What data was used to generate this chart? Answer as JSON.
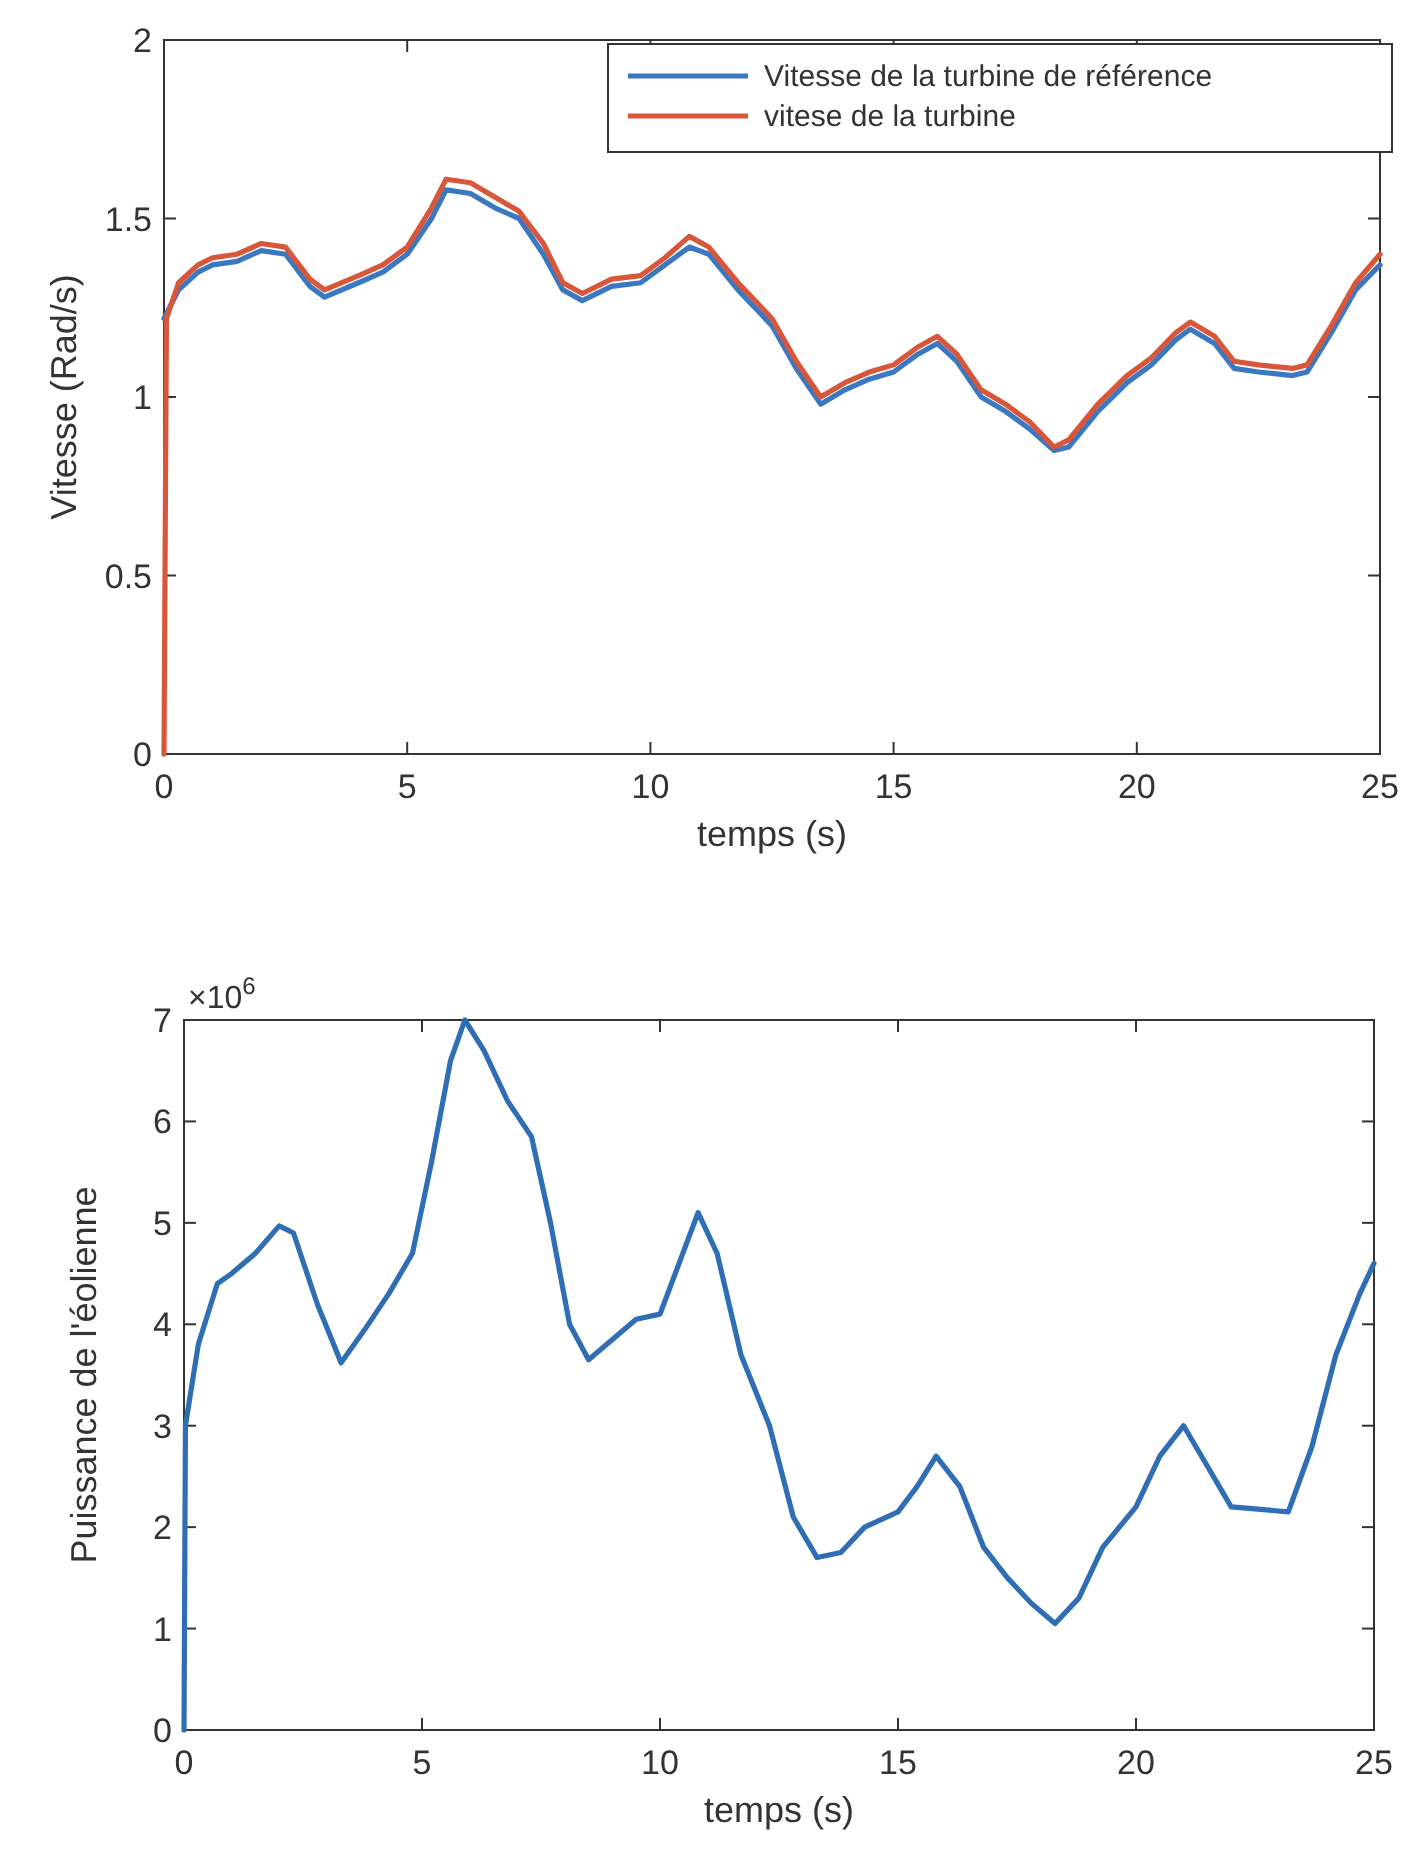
{
  "chart_data": [
    {
      "type": "line",
      "xlabel": "temps (s)",
      "ylabel": "Vitesse (Rad/s)",
      "xlim": [
        0,
        25
      ],
      "ylim": [
        0,
        2
      ],
      "xticks": [
        0,
        5,
        10,
        15,
        20,
        25
      ],
      "yticks": [
        0,
        0.5,
        1,
        1.5,
        2
      ],
      "grid": false,
      "legend": "top right",
      "line_style": "solid",
      "marker": "none",
      "x": [
        0,
        0.3,
        0.7,
        1,
        1.5,
        2,
        2.5,
        3,
        3.3,
        4,
        4.5,
        5,
        5.5,
        5.8,
        6.3,
        6.8,
        7.3,
        7.8,
        8.2,
        8.6,
        9.2,
        9.8,
        10.3,
        10.8,
        11.2,
        11.8,
        12.5,
        13,
        13.5,
        14,
        14.5,
        15,
        15.5,
        15.9,
        16.3,
        16.8,
        17.3,
        17.8,
        18.3,
        18.6,
        19.2,
        19.8,
        20.3,
        20.8,
        21.1,
        21.6,
        22,
        22.5,
        23.2,
        23.5,
        24,
        24.5,
        25
      ],
      "series": [
        {
          "name": "Vitesse de la turbine de référence",
          "color": "#3b78c2",
          "values": [
            1.22,
            1.3,
            1.35,
            1.37,
            1.38,
            1.41,
            1.4,
            1.31,
            1.28,
            1.32,
            1.35,
            1.4,
            1.5,
            1.58,
            1.57,
            1.53,
            1.5,
            1.4,
            1.3,
            1.27,
            1.31,
            1.32,
            1.37,
            1.42,
            1.4,
            1.3,
            1.2,
            1.08,
            0.98,
            1.02,
            1.05,
            1.07,
            1.12,
            1.15,
            1.1,
            1.0,
            0.96,
            0.91,
            0.85,
            0.86,
            0.96,
            1.04,
            1.09,
            1.16,
            1.19,
            1.15,
            1.08,
            1.07,
            1.06,
            1.07,
            1.18,
            1.3,
            1.37
          ]
        },
        {
          "name": "vitese de la turbine",
          "color": "#d8573a",
          "x": [
            0,
            0.05,
            0.3,
            0.7,
            1,
            1.5,
            2,
            2.5,
            3,
            3.3,
            4,
            4.5,
            5,
            5.5,
            5.8,
            6.3,
            6.8,
            7.3,
            7.8,
            8.2,
            8.6,
            9.2,
            9.8,
            10.3,
            10.8,
            11.2,
            11.8,
            12.5,
            13,
            13.5,
            14,
            14.5,
            15,
            15.5,
            15.9,
            16.3,
            16.8,
            17.3,
            17.8,
            18.3,
            18.6,
            19.2,
            19.8,
            20.3,
            20.8,
            21.1,
            21.6,
            22,
            22.5,
            23.2,
            23.5,
            24,
            24.5,
            25
          ],
          "values": [
            0,
            1.22,
            1.32,
            1.37,
            1.39,
            1.4,
            1.43,
            1.42,
            1.33,
            1.3,
            1.34,
            1.37,
            1.42,
            1.53,
            1.61,
            1.6,
            1.56,
            1.52,
            1.43,
            1.32,
            1.29,
            1.33,
            1.34,
            1.39,
            1.45,
            1.42,
            1.32,
            1.22,
            1.1,
            1.0,
            1.04,
            1.07,
            1.09,
            1.14,
            1.17,
            1.12,
            1.02,
            0.98,
            0.93,
            0.86,
            0.88,
            0.98,
            1.06,
            1.11,
            1.18,
            1.21,
            1.17,
            1.1,
            1.09,
            1.08,
            1.09,
            1.2,
            1.32,
            1.4
          ]
        }
      ]
    },
    {
      "type": "line",
      "xlabel": "temps (s)",
      "ylabel": "Puissance de l'éolienne",
      "annotations": [
        "×10$^{6}$"
      ],
      "xlim": [
        0,
        25
      ],
      "ylim": [
        0,
        7
      ],
      "xticks": [
        0,
        5,
        10,
        15,
        20,
        25
      ],
      "yticks": [
        0,
        1,
        2,
        3,
        4,
        5,
        6,
        7
      ],
      "grid": false,
      "line_style": "solid",
      "marker": "none",
      "x": [
        0,
        0.03,
        0.3,
        0.7,
        1,
        1.5,
        2,
        2.3,
        2.8,
        3.3,
        3.8,
        4.3,
        4.8,
        5.2,
        5.6,
        5.9,
        6.3,
        6.8,
        7.3,
        7.7,
        8.1,
        8.5,
        9,
        9.5,
        10,
        10.4,
        10.8,
        11.2,
        11.7,
        12.3,
        12.8,
        13.3,
        13.8,
        14.3,
        15,
        15.4,
        15.8,
        16.3,
        16.8,
        17.3,
        17.8,
        18.3,
        18.8,
        19.3,
        20,
        20.5,
        21,
        21.5,
        22,
        22.5,
        23.2,
        23.7,
        24.2,
        24.7,
        25
      ],
      "series": [
        {
          "color": "#2f6db5",
          "values": [
            0,
            3.0,
            3.8,
            4.4,
            4.5,
            4.7,
            4.97,
            4.9,
            4.2,
            3.62,
            3.95,
            4.3,
            4.7,
            5.6,
            6.6,
            7.0,
            6.7,
            6.2,
            5.85,
            5.0,
            4.0,
            3.65,
            3.85,
            4.05,
            4.1,
            4.6,
            5.1,
            4.7,
            3.7,
            3.0,
            2.1,
            1.7,
            1.75,
            2.0,
            2.15,
            2.4,
            2.7,
            2.4,
            1.8,
            1.5,
            1.25,
            1.05,
            1.3,
            1.8,
            2.2,
            2.7,
            3.0,
            2.6,
            2.2,
            2.18,
            2.15,
            2.8,
            3.7,
            4.3,
            4.6
          ]
        }
      ]
    }
  ]
}
